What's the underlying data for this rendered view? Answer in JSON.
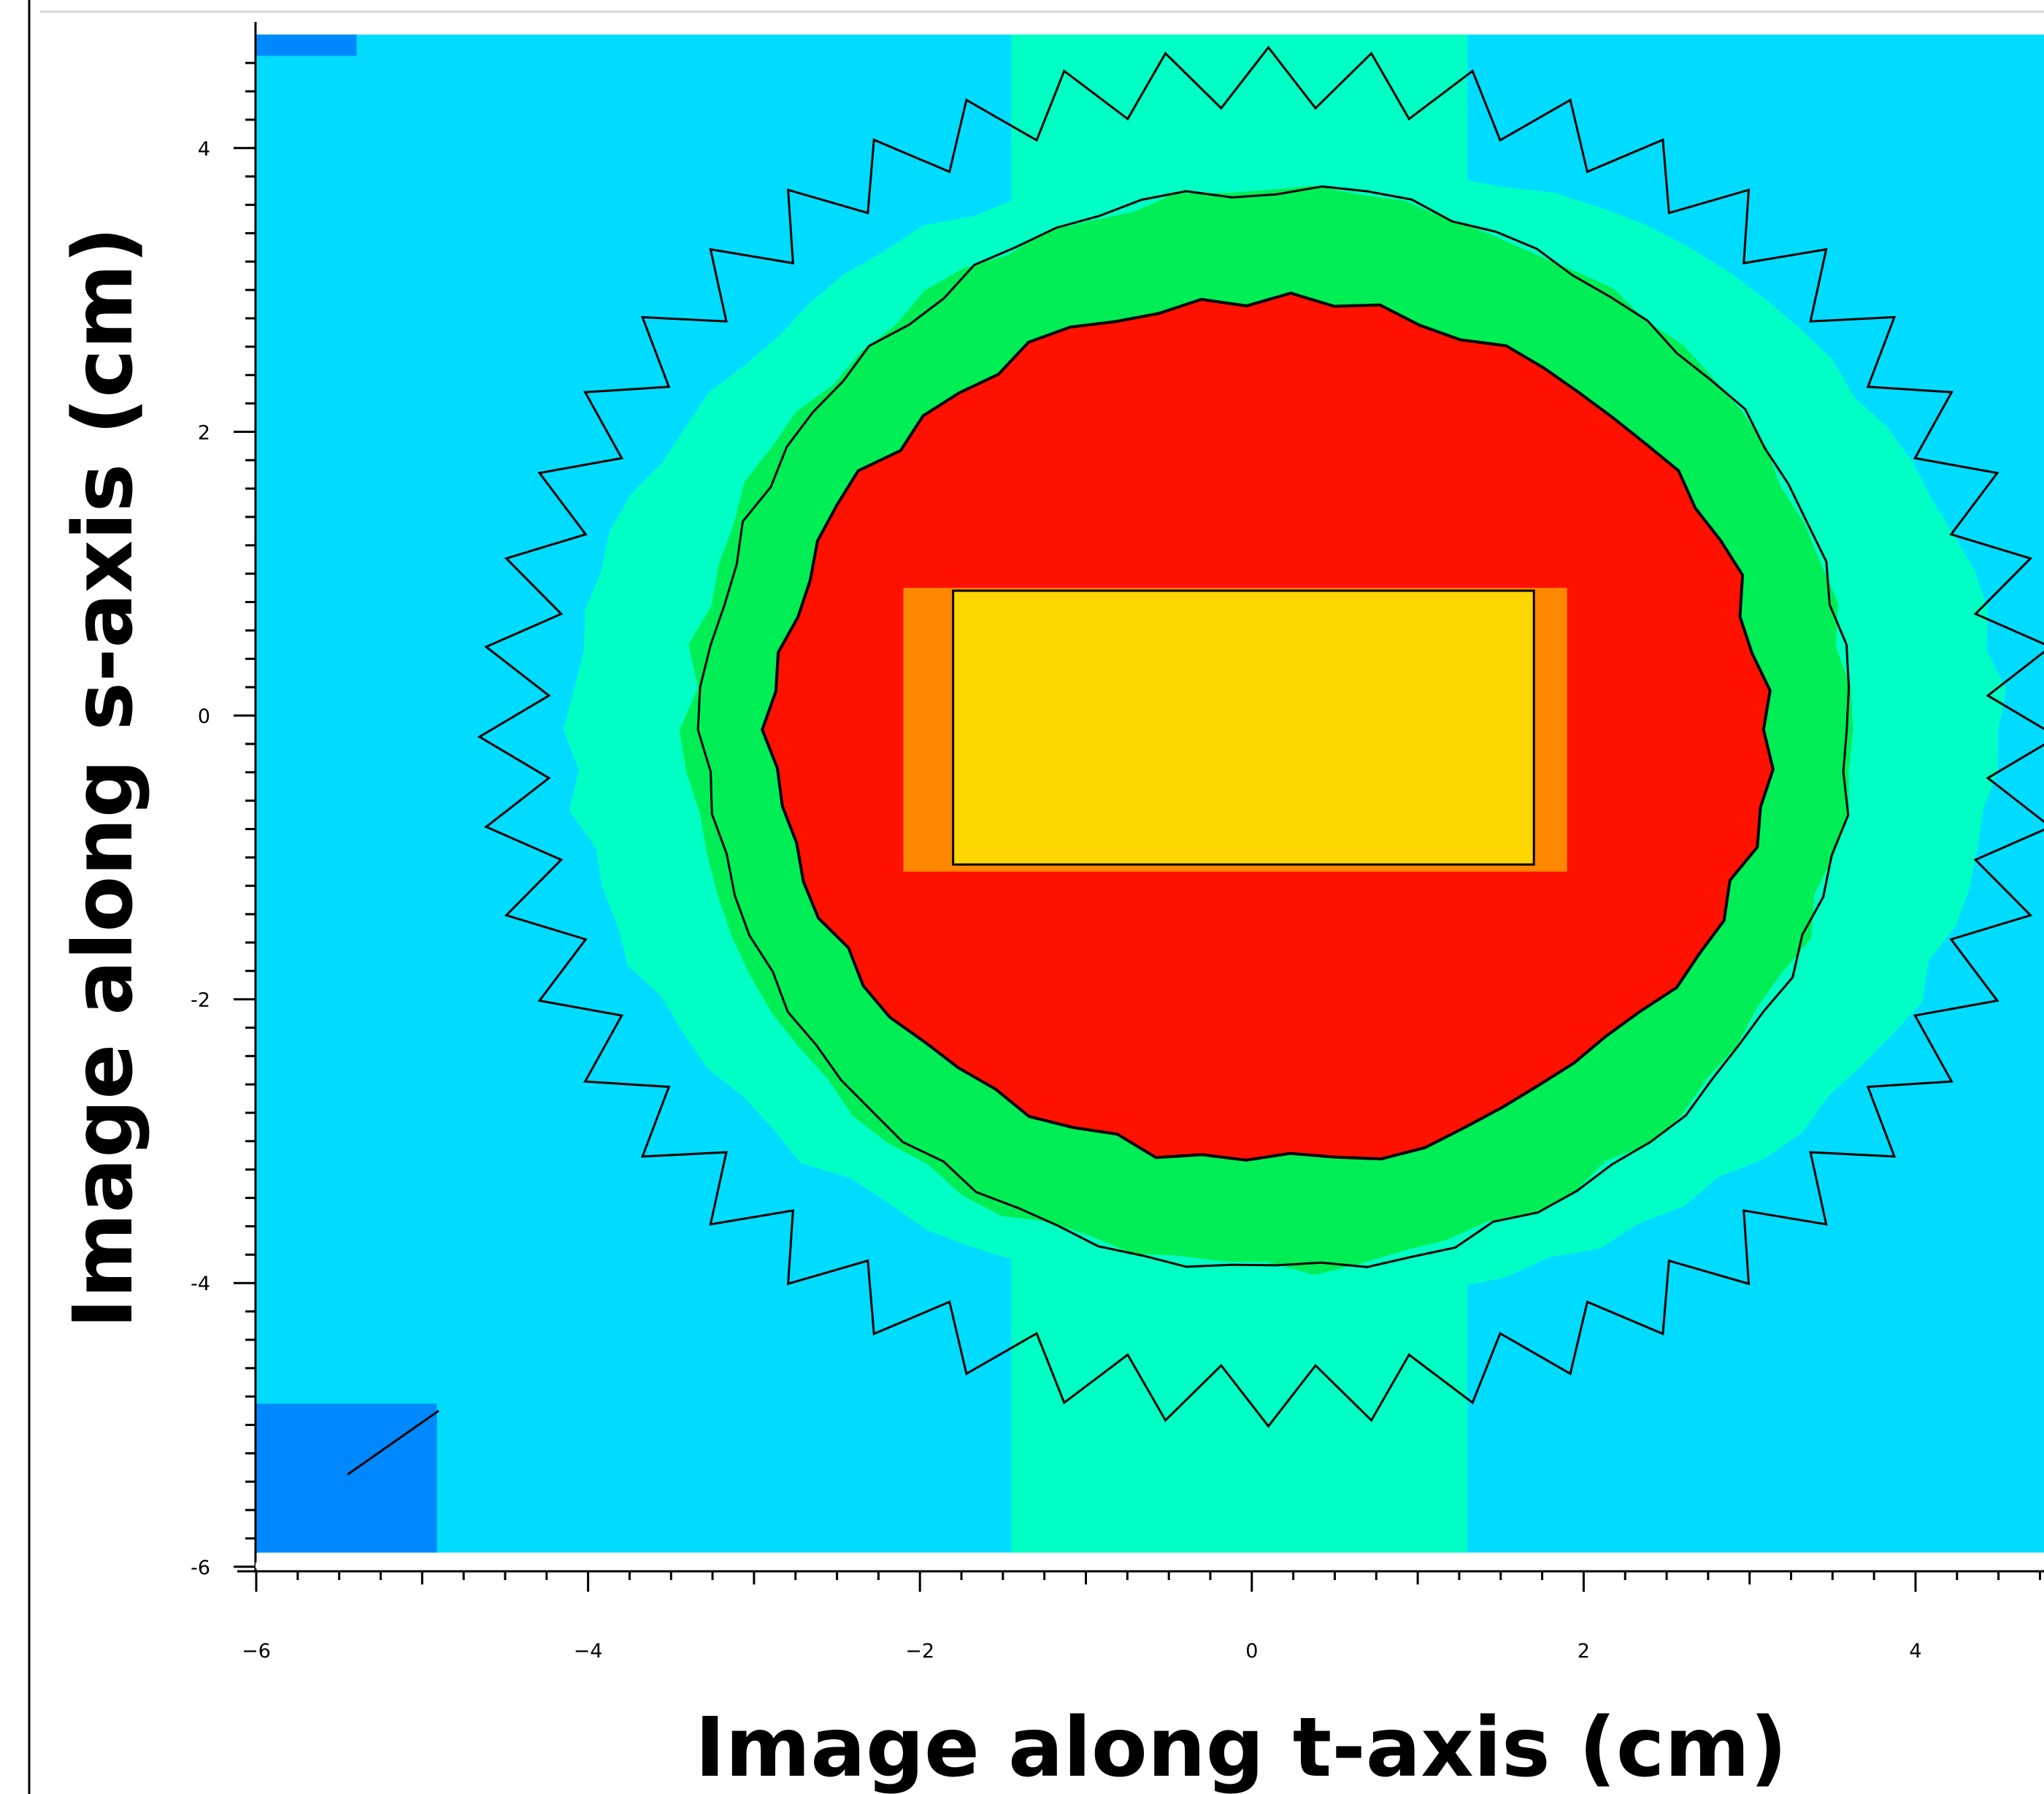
{
  "chart_data": {
    "type": "heatmap",
    "title": "",
    "xlabel": "Image along t-axis (cm)",
    "ylabel": "Image along s-axis (cm)",
    "xlim": [
      -6,
      6
    ],
    "ylim": [
      -6,
      5
    ],
    "x_ticks": [
      -6,
      -4,
      -2,
      0,
      2,
      4
    ],
    "x_tick_labels": [
      "−6",
      "−4",
      "−2",
      "0",
      "2",
      "4"
    ],
    "y_ticks": [
      4,
      2,
      0,
      -2,
      -4,
      -6
    ],
    "y_tick_labels": [
      "4",
      "2",
      "0",
      "-2",
      "-4",
      "-6"
    ],
    "grid": false,
    "colors": {
      "corner": "#0088ff",
      "background": "#00dcff",
      "outer_ring": "#00ffc4",
      "mid_ring": "#00ee55",
      "core": "#ff1100",
      "rect_edge": "#ff8800",
      "rect_center": "#ffd700"
    },
    "regions": [
      {
        "level": "background",
        "shape": "square",
        "x": [
          -6,
          6
        ],
        "y": [
          -5.9,
          4.8
        ]
      },
      {
        "level": "corner",
        "shape": "corner-squares",
        "size": 1.1
      },
      {
        "level": "outer_ring",
        "shape": "ring",
        "center": [
          0,
          0
        ],
        "radius": 4.8
      },
      {
        "level": "mid_ring",
        "shape": "ellipse",
        "center": [
          0.1,
          -0.1
        ],
        "rx": 3.5,
        "ry": 3.8
      },
      {
        "level": "core",
        "shape": "ellipse",
        "center": [
          0.1,
          -0.1
        ],
        "rx": 3.0,
        "ry": 3.05
      },
      {
        "level": "rect_edge",
        "shape": "rect",
        "x": [
          -2.1,
          1.9
        ],
        "y": [
          -1.1,
          0.9
        ]
      },
      {
        "level": "rect_center",
        "shape": "rect",
        "x": [
          -1.8,
          1.7
        ],
        "y": [
          -1.05,
          0.88
        ]
      }
    ]
  }
}
